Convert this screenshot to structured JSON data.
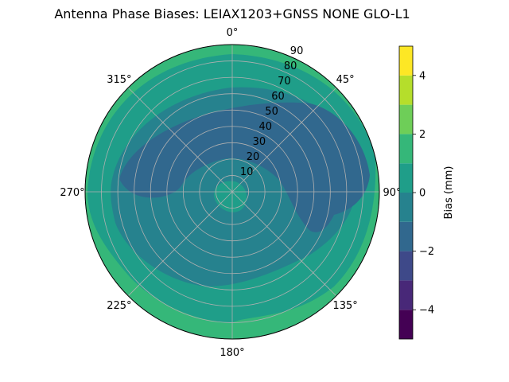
{
  "chart_data": {
    "type": "polar-contour",
    "title": "Antenna Phase Biases: LEIAX1203+GNSS  NONE GLO-L1",
    "angle_ticks": [
      {
        "deg": 0,
        "label": "0°"
      },
      {
        "deg": 45,
        "label": "45°"
      },
      {
        "deg": 90,
        "label": "90°"
      },
      {
        "deg": 135,
        "label": "135°"
      },
      {
        "deg": 180,
        "label": "180°"
      },
      {
        "deg": 225,
        "label": "225°"
      },
      {
        "deg": 270,
        "label": "270°"
      },
      {
        "deg": 315,
        "label": "315°"
      }
    ],
    "radial_ticks": [
      10,
      20,
      30,
      40,
      50,
      60,
      70,
      80,
      90
    ],
    "rlim": [
      0,
      90
    ],
    "grid": true,
    "colorbar": {
      "label": "Bias (mm)",
      "ticks": [
        -4,
        -2,
        0,
        2,
        4
      ],
      "range": [
        -5,
        5
      ],
      "levels": [
        -5,
        -4.2,
        -3.4,
        -2.6,
        -1.8,
        -1.0,
        -0.2,
        0.6,
        1.4,
        2.2,
        3.0,
        3.8,
        4.6,
        5.0
      ],
      "colors": [
        "#440154",
        "#482878",
        "#3e4989",
        "#31688e",
        "#26828e",
        "#1f9e89",
        "#35b779",
        "#6ece58",
        "#b5de2b",
        "#fde725"
      ]
    },
    "regions": [
      {
        "level_color": "#35b779",
        "description": "outer ring elevation ~80-90"
      },
      {
        "level_color": "#1f9e89",
        "description": "mid ring"
      },
      {
        "level_color": "#26828e",
        "description": "inner broad band"
      },
      {
        "level_color": "#31688e",
        "description": "darker patches"
      }
    ]
  }
}
